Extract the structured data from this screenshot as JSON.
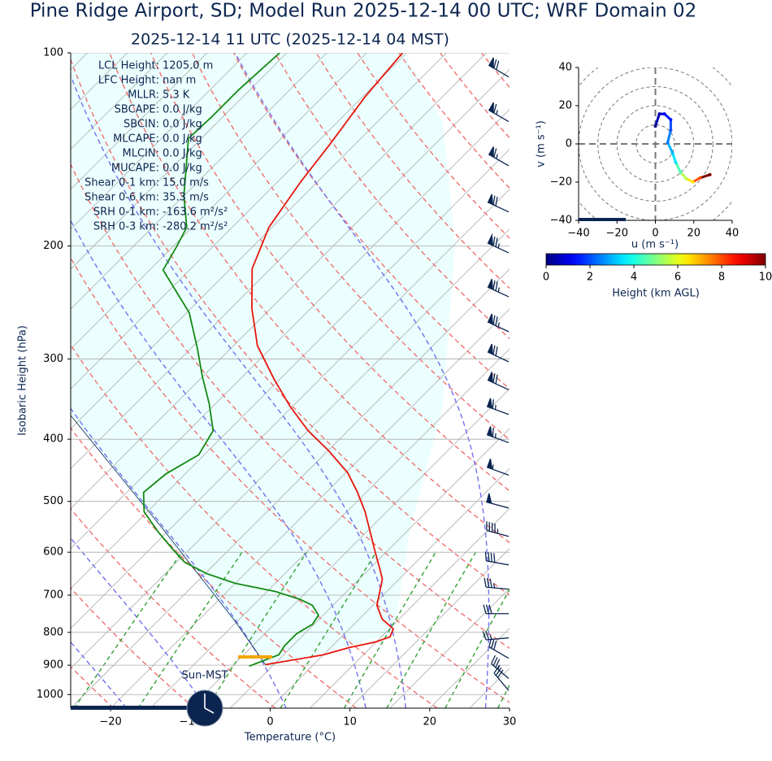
{
  "chart_data": [
    {
      "type": "skewt",
      "title": "Pine Ridge Airport, SD; Model Run 2025-12-14 00 UTC; WRF Domain 02",
      "subtitle": "2025-12-14 11 UTC  (2025-12-14 04 MST)",
      "xlabel": "Temperature (°C)",
      "ylabel": "Isobaric Height (hPa)",
      "xlim": [
        -25,
        30
      ],
      "ylim": [
        1050,
        100
      ],
      "log_y": true,
      "grid": true,
      "xticks": [
        {
          "value": -20,
          "label": "−20"
        },
        {
          "value": -10,
          "label": "−10"
        },
        0,
        10,
        20,
        30
      ],
      "yticks": [
        100,
        200,
        300,
        400,
        500,
        600,
        700,
        800,
        900,
        1000
      ],
      "series": [
        {
          "color": "#e8150b",
          "pressure": [
            898,
            867,
            845,
            828,
            813,
            790,
            763,
            726,
            695,
            661,
            637,
            601,
            519,
            483,
            451,
            417,
            388,
            355,
            322,
            286,
            250,
            217,
            187,
            159,
            138,
            117,
            100
          ],
          "values": [
            -6.0,
            0.0,
            2.3,
            4.9,
            6.1,
            5.5,
            2.9,
            0.5,
            -0.7,
            -2.1,
            -3.7,
            -6.3,
            -12.7,
            -16.2,
            -19.8,
            -24.9,
            -30.0,
            -35.4,
            -40.8,
            -47.0,
            -52.4,
            -57.3,
            -60.4,
            -62.1,
            -63.2,
            -64.7,
            -65.5
          ]
        },
        {
          "color": "#138a13",
          "pressure": [
            903,
            867,
            840,
            804,
            777,
            752,
            726,
            711,
            691,
            671,
            648,
            622,
            592,
            558,
            519,
            484,
            453,
            423,
            388,
            352,
            319,
            288,
            254,
            232,
            218,
            201,
            187,
            167,
            136,
            126,
            114,
            100
          ],
          "values": [
            -7.9,
            -5.6,
            -6.0,
            -6.0,
            -5.2,
            -5.6,
            -7.6,
            -9.8,
            -13.9,
            -20.0,
            -24.8,
            -29.0,
            -32.3,
            -36.1,
            -40.4,
            -42.9,
            -42.4,
            -40.7,
            -41.9,
            -45.8,
            -50.1,
            -54.3,
            -59.7,
            -64.8,
            -68.3,
            -69.5,
            -70.7,
            -75.0,
            -81.6,
            -81.4,
            -81.4,
            -80.9
          ]
        }
      ],
      "winds": {
        "pressure": [
          109,
          128,
          150,
          177,
          205,
          240,
          272,
          303,
          335,
          366,
          405,
          455,
          512,
          567,
          628,
          685,
          748,
          816,
          878,
          944,
          986
        ],
        "speed": [
          70,
          65,
          65,
          70,
          75,
          75,
          75,
          70,
          70,
          65,
          65,
          55,
          50,
          45,
          40,
          35,
          30,
          25,
          30,
          35,
          30
        ],
        "direction": [
          300,
          300,
          300,
          295,
          295,
          295,
          295,
          295,
          295,
          290,
          290,
          290,
          285,
          285,
          280,
          275,
          270,
          265,
          300,
          310,
          320
        ],
        "color": "#0b2550"
      },
      "stats": [
        {
          "label": "LCL Height:",
          "value": "1205.0 m"
        },
        {
          "label": "LFC Height:",
          "value": "nan m"
        },
        {
          "label": "MLLR:",
          "value": "5.3 K"
        },
        {
          "label": "SBCAPE:",
          "value": "0.0 J/kg"
        },
        {
          "label": "SBCIN:",
          "value": "0.0 J/kg"
        },
        {
          "label": "MLCAPE:",
          "value": "0.0 J/kg"
        },
        {
          "label": "MLCIN:",
          "value": "0.0 J/kg"
        },
        {
          "label": "MUCAPE:",
          "value": "0.0 J/kg"
        },
        {
          "label": "Shear 0-1 km:",
          "value": "15.0 m/s"
        },
        {
          "label": "Shear 0-6 km:",
          "value": "35.3 m/s"
        },
        {
          "label": "SRH 0-1 km:",
          "value": "-163.6 m²/s²"
        },
        {
          "label": "SRH 0-3 km:",
          "value": "-280.2 m²/s²"
        }
      ],
      "clock_label": "Sun-MST"
    },
    {
      "type": "hodograph",
      "xlabel": "u (m s⁻¹)",
      "ylabel": "v (m s⁻¹)",
      "xlim": [
        -40,
        40
      ],
      "ylim": [
        -40,
        40
      ],
      "xticks": [
        {
          "value": -40,
          "label": "−40"
        },
        {
          "value": -20,
          "label": "−20"
        },
        0,
        20,
        40
      ],
      "yticks": [
        {
          "value": -40,
          "label": "−40"
        },
        {
          "value": -20,
          "label": "−20"
        },
        0,
        20,
        40
      ],
      "u": [
        0,
        2.1,
        4.7,
        8,
        8,
        6.4,
        8.9,
        10.6,
        13.1,
        16.1,
        19.5,
        23.3,
        28.4
      ],
      "v": [
        9.3,
        15.7,
        15.7,
        12.7,
        7.2,
        0.8,
        -4.7,
        -9.7,
        -14.8,
        -18.2,
        -19.9,
        -17.8,
        -16.1
      ],
      "height": [
        0,
        0.5,
        1,
        1.5,
        2,
        2.5,
        3,
        3.5,
        4.5,
        5.5,
        6.5,
        8,
        10
      ],
      "colorbar": {
        "label": "Height (km AGL)",
        "lim": [
          0,
          10
        ],
        "ticks": [
          0,
          2,
          4,
          6,
          8,
          10
        ]
      }
    }
  ]
}
